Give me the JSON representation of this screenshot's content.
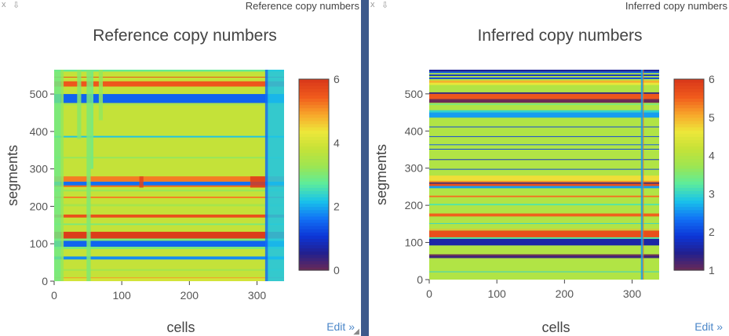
{
  "panels": {
    "left": {
      "label": "Reference copy numbers",
      "edit": "Edit »",
      "close": "x",
      "pin": "⇩"
    },
    "right": {
      "label": "Inferred copy numbers",
      "edit": "Edit »",
      "close": "x",
      "pin": "⇩"
    }
  },
  "colorscale": [
    "#6b2a55",
    "#22208e",
    "#0c36d8",
    "#1273f5",
    "#19c3ea",
    "#5cec9c",
    "#9de652",
    "#c5e238",
    "#ede73a",
    "#f8a52a",
    "#f05a1c",
    "#d8371a"
  ],
  "chart_data": [
    {
      "type": "heatmap",
      "title": "Reference copy numbers",
      "xlabel": "cells",
      "ylabel": "segments",
      "xlim": [
        0,
        340
      ],
      "ylim": [
        0,
        565
      ],
      "x_ticks": [
        0,
        100,
        200,
        300
      ],
      "y_ticks": [
        0,
        100,
        200,
        300,
        400,
        500
      ],
      "colorbar": {
        "range": [
          0,
          6
        ],
        "ticks": [
          0,
          2,
          4,
          6
        ]
      },
      "bands": [
        {
          "y0": 0,
          "y1": 565,
          "value": 3.8
        },
        {
          "y0": 0,
          "y1": 8,
          "value": 4.0
        },
        {
          "y0": 8,
          "y1": 10,
          "value": 5.0
        },
        {
          "y0": 28,
          "y1": 32,
          "value": 3.3
        },
        {
          "y0": 58,
          "y1": 66,
          "value": 1.8
        },
        {
          "y0": 86,
          "y1": 92,
          "value": 3.0
        },
        {
          "y0": 92,
          "y1": 108,
          "value": 1.5
        },
        {
          "y0": 108,
          "y1": 114,
          "value": 3.0
        },
        {
          "y0": 114,
          "y1": 132,
          "value": 5.9
        },
        {
          "y0": 150,
          "y1": 154,
          "value": 3.0
        },
        {
          "y0": 170,
          "y1": 178,
          "value": 5.6
        },
        {
          "y0": 200,
          "y1": 206,
          "value": 3.4
        },
        {
          "y0": 222,
          "y1": 226,
          "value": 5.2
        },
        {
          "y0": 240,
          "y1": 244,
          "value": 3.2
        },
        {
          "y0": 252,
          "y1": 256,
          "value": 5.4
        },
        {
          "y0": 256,
          "y1": 266,
          "value": 1.6
        },
        {
          "y0": 266,
          "y1": 280,
          "value": 5.2
        },
        {
          "y0": 328,
          "y1": 332,
          "value": 3.2
        },
        {
          "y0": 384,
          "y1": 388,
          "value": 2.2
        },
        {
          "y0": 470,
          "y1": 474,
          "value": 3.4
        },
        {
          "y0": 476,
          "y1": 500,
          "value": 1.5
        },
        {
          "y0": 520,
          "y1": 534,
          "value": 5.5
        },
        {
          "y0": 544,
          "y1": 546,
          "value": 5.6
        },
        {
          "y0": 560,
          "y1": 565,
          "value": 2.8
        }
      ],
      "columns": [
        {
          "x0": 0,
          "x1": 10,
          "y0": 0,
          "y1": 565,
          "value": 2.9
        },
        {
          "x0": 10,
          "x1": 14,
          "y0": 0,
          "y1": 565,
          "value": 3.2
        },
        {
          "x0": 34,
          "x1": 40,
          "y0": 380,
          "y1": 565,
          "value": 3.1
        },
        {
          "x0": 48,
          "x1": 54,
          "y0": 0,
          "y1": 565,
          "value": 3.0
        },
        {
          "x0": 54,
          "x1": 58,
          "y0": 300,
          "y1": 565,
          "value": 2.9
        },
        {
          "x0": 66,
          "x1": 72,
          "y0": 430,
          "y1": 565,
          "value": 3.2
        },
        {
          "x0": 315,
          "x1": 340,
          "y0": 0,
          "y1": 565,
          "value": 2.2
        },
        {
          "x0": 312,
          "x1": 316,
          "y0": 0,
          "y1": 565,
          "value": 1.6
        },
        {
          "x0": 126,
          "x1": 132,
          "y0": 250,
          "y1": 280,
          "value": 5.8
        },
        {
          "x0": 290,
          "x1": 312,
          "y0": 250,
          "y1": 280,
          "value": 5.9
        }
      ]
    },
    {
      "type": "heatmap",
      "title": "Inferred copy numbers",
      "xlabel": "cells",
      "ylabel": "segments",
      "xlim": [
        0,
        340
      ],
      "ylim": [
        0,
        565
      ],
      "x_ticks": [
        0,
        100,
        200,
        300
      ],
      "y_ticks": [
        0,
        100,
        200,
        300,
        400,
        500
      ],
      "colorbar": {
        "range": [
          1,
          6
        ],
        "ticks": [
          1,
          2,
          3,
          4,
          5,
          6
        ]
      },
      "bands": [
        {
          "y0": 0,
          "y1": 565,
          "value": 3.95
        },
        {
          "y0": 20,
          "y1": 22,
          "value": 3.0
        },
        {
          "y0": 58,
          "y1": 64,
          "value": 1.3
        },
        {
          "y0": 64,
          "y1": 68,
          "value": 1.0
        },
        {
          "y0": 92,
          "y1": 110,
          "value": 1.6
        },
        {
          "y0": 110,
          "y1": 114,
          "value": 3.2
        },
        {
          "y0": 114,
          "y1": 132,
          "value": 5.7
        },
        {
          "y0": 134,
          "y1": 136,
          "value": 5.0
        },
        {
          "y0": 150,
          "y1": 152,
          "value": 3.0
        },
        {
          "y0": 170,
          "y1": 178,
          "value": 5.5
        },
        {
          "y0": 200,
          "y1": 204,
          "value": 3.2
        },
        {
          "y0": 222,
          "y1": 226,
          "value": 5.4
        },
        {
          "y0": 246,
          "y1": 252,
          "value": 2.6
        },
        {
          "y0": 252,
          "y1": 258,
          "value": 5.7
        },
        {
          "y0": 258,
          "y1": 262,
          "value": 1.2
        },
        {
          "y0": 262,
          "y1": 266,
          "value": 5.2
        },
        {
          "y0": 266,
          "y1": 280,
          "value": 4.7
        },
        {
          "y0": 296,
          "y1": 298,
          "value": 2.0
        },
        {
          "y0": 322,
          "y1": 324,
          "value": 1.8
        },
        {
          "y0": 350,
          "y1": 352,
          "value": 2.0
        },
        {
          "y0": 362,
          "y1": 364,
          "value": 2.2
        },
        {
          "y0": 384,
          "y1": 386,
          "value": 2.0
        },
        {
          "y0": 410,
          "y1": 412,
          "value": 2.0
        },
        {
          "y0": 436,
          "y1": 450,
          "value": 2.6
        },
        {
          "y0": 450,
          "y1": 456,
          "value": 3.0
        },
        {
          "y0": 470,
          "y1": 474,
          "value": 3.5
        },
        {
          "y0": 476,
          "y1": 486,
          "value": 1.0
        },
        {
          "y0": 486,
          "y1": 500,
          "value": 5.6
        },
        {
          "y0": 500,
          "y1": 504,
          "value": 1.3
        },
        {
          "y0": 524,
          "y1": 530,
          "value": 4.6
        },
        {
          "y0": 530,
          "y1": 536,
          "value": 5.0
        },
        {
          "y0": 540,
          "y1": 544,
          "value": 2.0
        },
        {
          "y0": 548,
          "y1": 552,
          "value": 1.8
        },
        {
          "y0": 556,
          "y1": 560,
          "value": 2.2
        },
        {
          "y0": 560,
          "y1": 565,
          "value": 1.5
        }
      ],
      "columns": [
        {
          "x0": 313,
          "x1": 316,
          "y0": 0,
          "y1": 565,
          "value": 2.6
        },
        {
          "x0": 316,
          "x1": 317,
          "y0": 0,
          "y1": 565,
          "value": 5.4
        }
      ]
    }
  ]
}
